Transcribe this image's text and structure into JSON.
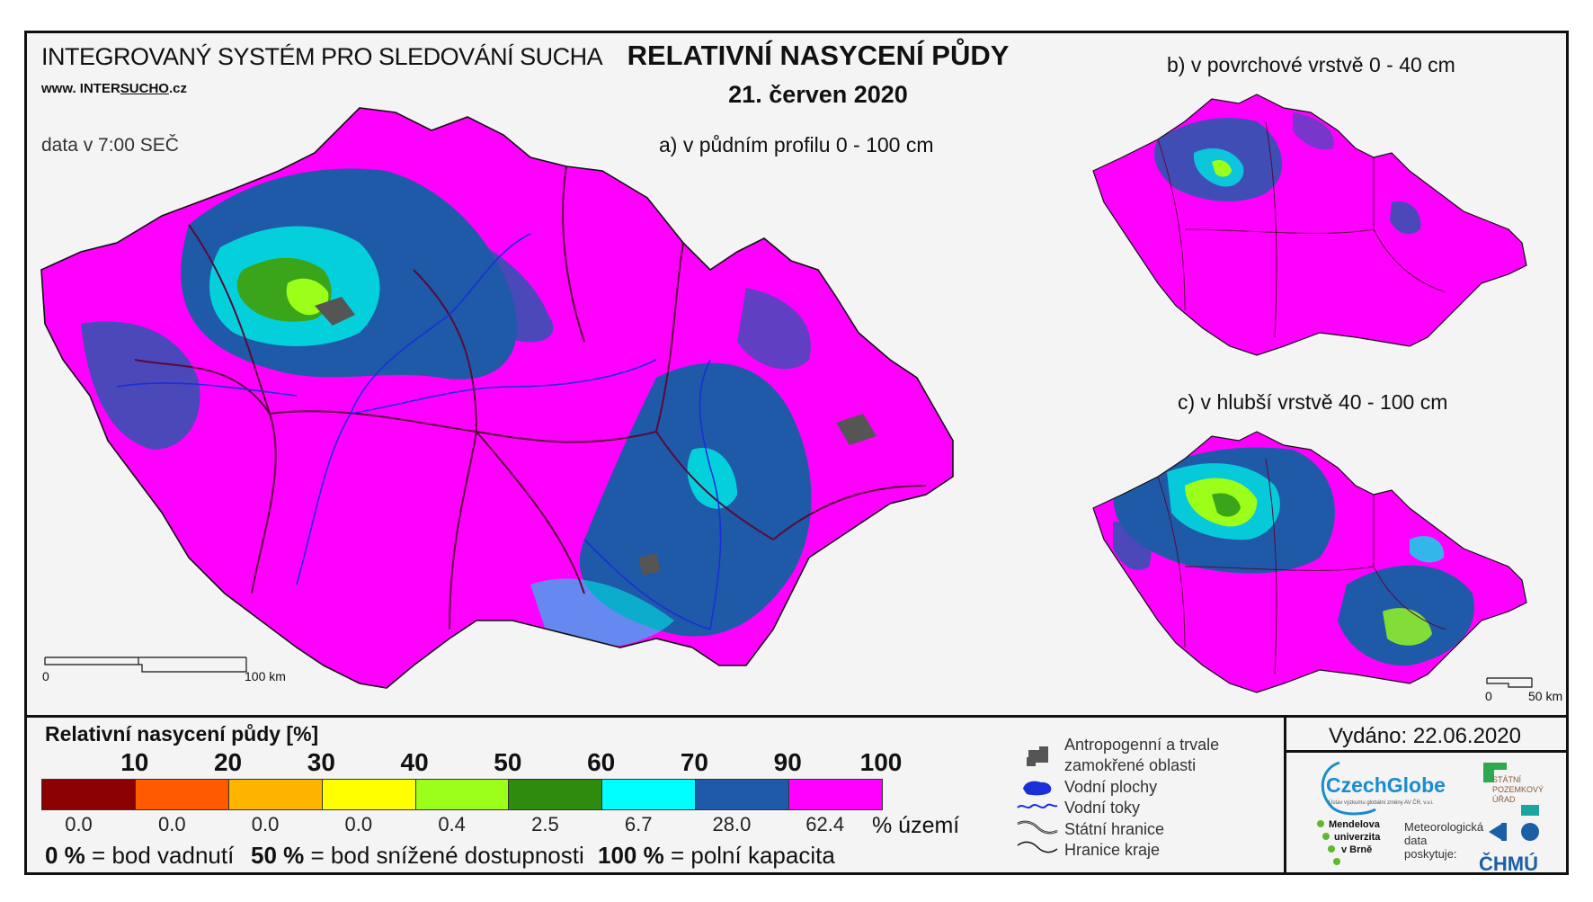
{
  "header": {
    "system_title": "INTEGROVANÝ SYSTÉM PRO SLEDOVÁNÍ SUCHA",
    "website_prefix": "www. INTER",
    "website_underlined": "SUCHO",
    "website_suffix": ".cz",
    "data_time": "data v 7:00 SEČ",
    "main_title": "RELATIVNÍ NASYCENÍ PŮDY",
    "date": "21. červen 2020"
  },
  "maps": {
    "a_label": "a) v půdním profilu 0 - 100 cm",
    "b_label": "b) v povrchové vrstvě 0 - 40 cm",
    "c_label": "c) v hlubší vrstvě 40 - 100 cm",
    "scale_main": {
      "start": "0",
      "end": "100 km"
    },
    "scale_small": {
      "start": "0",
      "end": "50 km"
    }
  },
  "legend": {
    "title": "Relativní nasycení půdy [%]",
    "thresholds": [
      "10",
      "20",
      "30",
      "40",
      "50",
      "60",
      "70",
      "90",
      "100"
    ],
    "colors": [
      "#8b0000",
      "#ff5a00",
      "#ffb400",
      "#ffff00",
      "#9bff1a",
      "#2e8b0e",
      "#00ffff",
      "#1e5aa8",
      "#ff00ff"
    ],
    "percent_territory": [
      "0.0",
      "0.0",
      "0.0",
      "0.0",
      "0.4",
      "2.5",
      "6.7",
      "28.0",
      "62.4"
    ],
    "percent_unit": "% území",
    "notes": [
      {
        "bold": "0 %",
        "text": " = bod vadnutí"
      },
      {
        "bold": "50 %",
        "text": " = bod snížené dostupnosti"
      },
      {
        "bold": "100 %",
        "text": " = polní kapacita"
      }
    ]
  },
  "symbols": {
    "anthropogenic_line1": "Antropogenní a trvale",
    "anthropogenic_line2": "zamokřené oblasti",
    "water_bodies": "Vodní plochy",
    "water_courses": "Vodní toky",
    "state_border": "Státní hranice",
    "region_border": "Hranice kraje"
  },
  "issued": "Vydáno: 22.06.2020",
  "logos": {
    "czechglobe": "CzechGlobe",
    "czechglobe_sub": "Ústav výzkumu globální změny AV ČR, v.v.i.",
    "spu_line1": "STÁTNÍ",
    "spu_line2": "POZEMKOVÝ",
    "spu_line3": "ÚŘAD",
    "mendel_line1": "Mendelova",
    "mendel_line2": "univerzita",
    "mendel_line3": "v Brně",
    "meteo_line1": "Meteorologická",
    "meteo_line2": "data",
    "meteo_line3": "poskytuje:",
    "chmu": "ČHMÚ"
  },
  "colors": {
    "magenta": "#ff00ff",
    "blue": "#1e5aa8",
    "cyan": "#00ffff",
    "green": "#2e8b0e",
    "light_green": "#9bff1a",
    "urban": "#555555",
    "border": "#5a0a3a",
    "river": "#1a2fd8"
  }
}
